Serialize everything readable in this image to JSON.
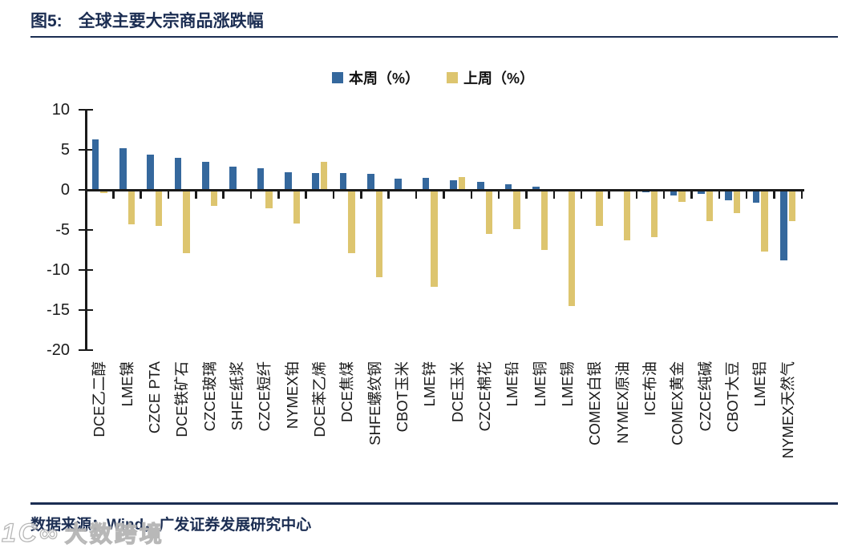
{
  "header": {
    "fig_label": "图5:",
    "title": "全球主要大宗商品涨跌幅"
  },
  "footer": {
    "source": "数据来源：Wind，广发证券发展研究中心"
  },
  "watermark": {
    "logo": "1C∞",
    "text": "大数跨境"
  },
  "colors": {
    "accent_navy": "#1b2d52",
    "bar_blue": "#35689d",
    "bar_yellow": "#ddc56f",
    "axis_black": "#1a1a1a"
  },
  "chart_data": {
    "type": "bar",
    "title": "全球主要大宗商品涨跌幅",
    "legend_position": "top",
    "grid": false,
    "ylim": [
      -20,
      10
    ],
    "yticks": [
      10,
      5,
      0,
      -5,
      -10,
      -15,
      -20
    ],
    "categories": [
      "DCE乙二醇",
      "LME镍",
      "CZCE PTA",
      "DCE铁矿石",
      "CZCE玻璃",
      "SHFE纸浆",
      "CZCE短纤",
      "NYMEX铂",
      "DCE苯乙烯",
      "DCE焦煤",
      "SHFE螺纹钢",
      "CBOT玉米",
      "LME锌",
      "DCE玉米",
      "CZCE棉花",
      "LME铅",
      "LME铜",
      "LME锡",
      "COMEX白银",
      "NYMEX原油",
      "ICE布油",
      "COMEX黄金",
      "CZCE纯碱",
      "CBOT大豆",
      "LME铝",
      "NYMEX天然气"
    ],
    "series": [
      {
        "name": "本周（%）",
        "color": "#35689d",
        "values": [
          6.3,
          5.2,
          4.4,
          4.0,
          3.5,
          2.9,
          2.7,
          2.2,
          2.1,
          2.1,
          2.0,
          1.4,
          1.5,
          1.2,
          1.0,
          0.7,
          0.4,
          0.0,
          0.0,
          0.0,
          -0.3,
          -0.7,
          -0.5,
          -1.3,
          -1.6,
          -8.8
        ]
      },
      {
        "name": "上周（%）",
        "color": "#ddc56f",
        "values": [
          -0.4,
          -4.3,
          -4.5,
          -7.9,
          -2.0,
          -0.2,
          -2.3,
          -4.2,
          3.5,
          -7.9,
          -10.9,
          0.0,
          -12.1,
          1.6,
          -5.5,
          -4.9,
          -7.5,
          -14.5,
          -4.5,
          -6.3,
          -5.9,
          -1.5,
          -3.9,
          -2.9,
          -7.7,
          -3.9
        ]
      }
    ]
  }
}
